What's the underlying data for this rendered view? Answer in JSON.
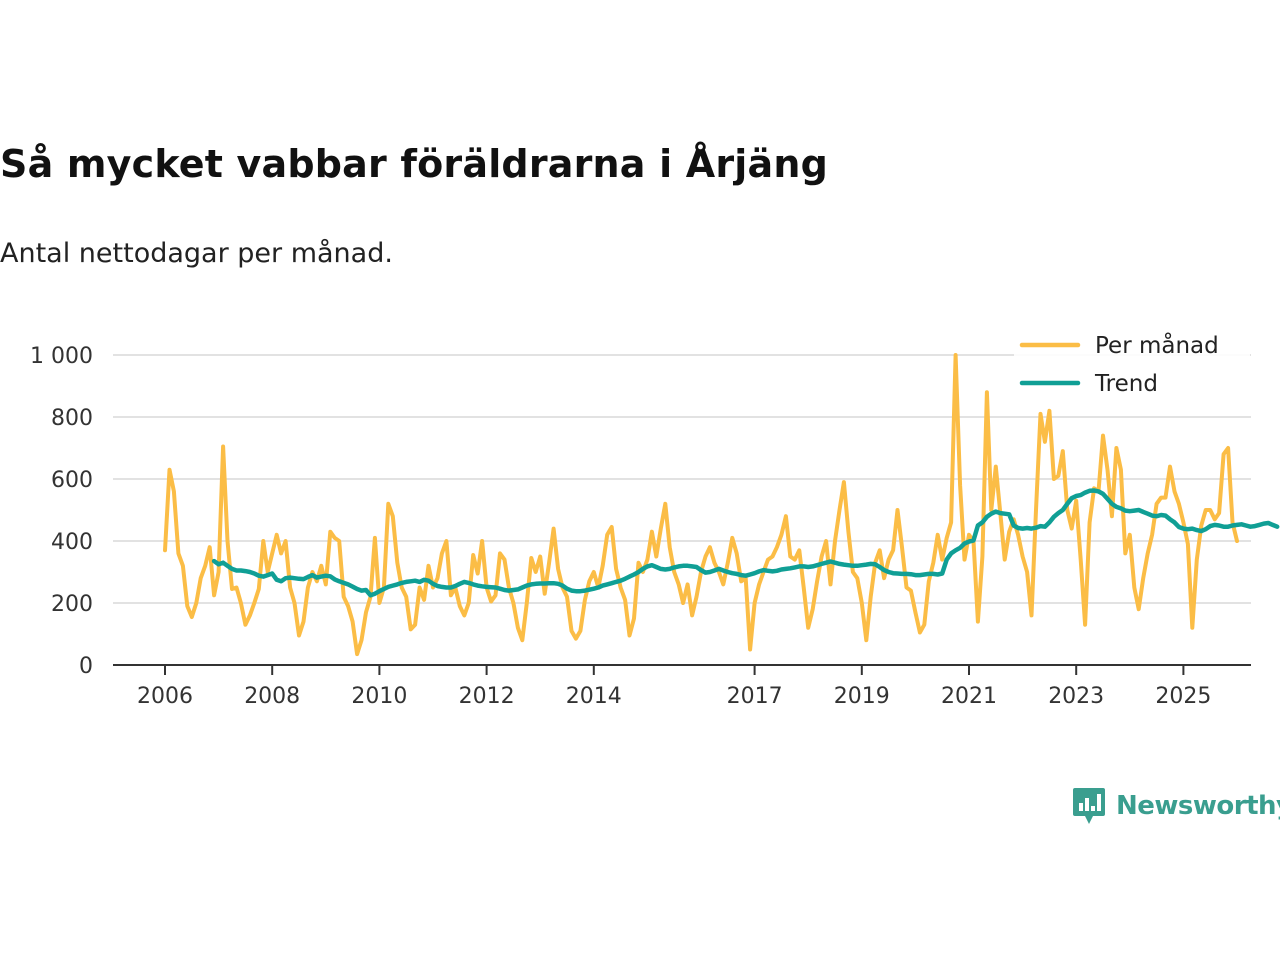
{
  "chart_data": {
    "type": "line",
    "title": "Så mycket vabbar föräldrarna i Årjäng",
    "subtitle": "Antal nettodagar per månad.",
    "xlabel": "",
    "ylabel": "",
    "xlim": [
      2006.0,
      2025.9
    ],
    "ylim": [
      0,
      1000
    ],
    "yticks": [
      0,
      200,
      400,
      600,
      800,
      1000
    ],
    "ytick_labels": [
      "0",
      "200",
      "400",
      "600",
      "800",
      "1 000"
    ],
    "xticks": [
      2006,
      2008,
      2010,
      2012,
      2014,
      2017,
      2019,
      2021,
      2023,
      2025
    ],
    "xtick_labels": [
      "2006",
      "2008",
      "2010",
      "2012",
      "2014",
      "2017",
      "2019",
      "2021",
      "2023",
      "2025"
    ],
    "grid": true,
    "legend_position": "top-right",
    "series": [
      {
        "name": "Per månad",
        "color": "#fbbd46",
        "start_year": 2006,
        "start_month": 1,
        "values": [
          370,
          630,
          560,
          360,
          320,
          190,
          155,
          200,
          280,
          320,
          380,
          225,
          300,
          705,
          400,
          245,
          250,
          200,
          130,
          160,
          200,
          245,
          400,
          300,
          360,
          420,
          360,
          400,
          250,
          200,
          95,
          140,
          250,
          300,
          270,
          320,
          260,
          430,
          410,
          400,
          220,
          190,
          140,
          35,
          80,
          170,
          220,
          410,
          200,
          250,
          520,
          480,
          330,
          250,
          220,
          115,
          130,
          250,
          210,
          320,
          250,
          280,
          360,
          400,
          225,
          250,
          190,
          160,
          200,
          355,
          295,
          400,
          250,
          205,
          225,
          360,
          340,
          250,
          200,
          120,
          80,
          200,
          345,
          300,
          350,
          230,
          330,
          440,
          310,
          250,
          220,
          110,
          85,
          110,
          210,
          270,
          300,
          250,
          320,
          420,
          445,
          310,
          250,
          210,
          95,
          150,
          330,
          300,
          340,
          430,
          350,
          440,
          520,
          380,
          300,
          260,
          200,
          260,
          160,
          220,
          300,
          350,
          380,
          330,
          300,
          260,
          330,
          410,
          360,
          270,
          280,
          50,
          200,
          260,
          300,
          340,
          350,
          380,
          420,
          480,
          350,
          340,
          370,
          250,
          120,
          180,
          270,
          350,
          400,
          260,
          400,
          500,
          590,
          430,
          300,
          280,
          200,
          80,
          220,
          330,
          370,
          280,
          340,
          370,
          500,
          380,
          250,
          240,
          170,
          105,
          130,
          270,
          330,
          420,
          340,
          410,
          460,
          1000,
          580,
          340,
          420,
          400,
          140,
          350,
          880,
          500,
          640,
          490,
          340,
          430,
          470,
          420,
          350,
          300,
          160,
          500,
          810,
          720,
          820,
          600,
          610,
          690,
          500,
          440,
          530,
          340,
          130,
          460,
          570,
          560,
          740,
          630,
          480,
          700,
          630,
          360,
          420,
          250,
          180,
          280,
          360,
          420,
          520,
          540,
          540,
          640,
          560,
          520,
          460,
          390,
          120,
          340,
          450,
          500,
          500,
          470,
          490,
          680,
          700,
          460,
          400
        ]
      },
      {
        "name": "Trend",
        "color": "#109f95",
        "start_year": 2006,
        "start_month": 12,
        "values": [
          335,
          325,
          330,
          320,
          310,
          305,
          305,
          303,
          300,
          295,
          288,
          285,
          290,
          295,
          275,
          270,
          280,
          282,
          280,
          278,
          277,
          284,
          290,
          282,
          285,
          288,
          286,
          276,
          270,
          265,
          260,
          253,
          245,
          240,
          242,
          225,
          230,
          238,
          245,
          252,
          256,
          260,
          265,
          268,
          270,
          272,
          268,
          275,
          272,
          262,
          255,
          252,
          250,
          250,
          255,
          262,
          268,
          265,
          260,
          256,
          254,
          252,
          251,
          250,
          246,
          242,
          240,
          242,
          244,
          250,
          256,
          260,
          262,
          263,
          263,
          264,
          264,
          262,
          256,
          246,
          240,
          238,
          238,
          240,
          243,
          246,
          250,
          256,
          260,
          264,
          268,
          272,
          278,
          285,
          292,
          300,
          310,
          318,
          322,
          316,
          310,
          308,
          310,
          315,
          318,
          320,
          320,
          318,
          316,
          306,
          298,
          300,
          305,
          310,
          305,
          300,
          296,
          294,
          290,
          288,
          292,
          296,
          302,
          306,
          304,
          302,
          304,
          308,
          310,
          312,
          315,
          318,
          318,
          316,
          318,
          322,
          326,
          330,
          334,
          330,
          326,
          324,
          322,
          320,
          320,
          322,
          324,
          326,
          325,
          316,
          306,
          300,
          296,
          295,
          294,
          294,
          293,
          290,
          290,
          292,
          294,
          294,
          292,
          295,
          340,
          360,
          370,
          378,
          392,
          398,
          402,
          450,
          460,
          478,
          488,
          495,
          490,
          488,
          486,
          450,
          442,
          440,
          442,
          440,
          443,
          448,
          446,
          460,
          478,
          490,
          500,
          520,
          538,
          545,
          548,
          556,
          562,
          563,
          560,
          552,
          536,
          520,
          510,
          505,
          498,
          496,
          498,
          500,
          494,
          488,
          482,
          480,
          484,
          482,
          470,
          460,
          445,
          440,
          438,
          440,
          435,
          432,
          438,
          448,
          452,
          450,
          446,
          446,
          450,
          452,
          454,
          450,
          446,
          448,
          452,
          456,
          458,
          452,
          446
        ]
      }
    ]
  },
  "brand": {
    "name": "Newsworthy",
    "icon": "chart-bubble-icon"
  }
}
